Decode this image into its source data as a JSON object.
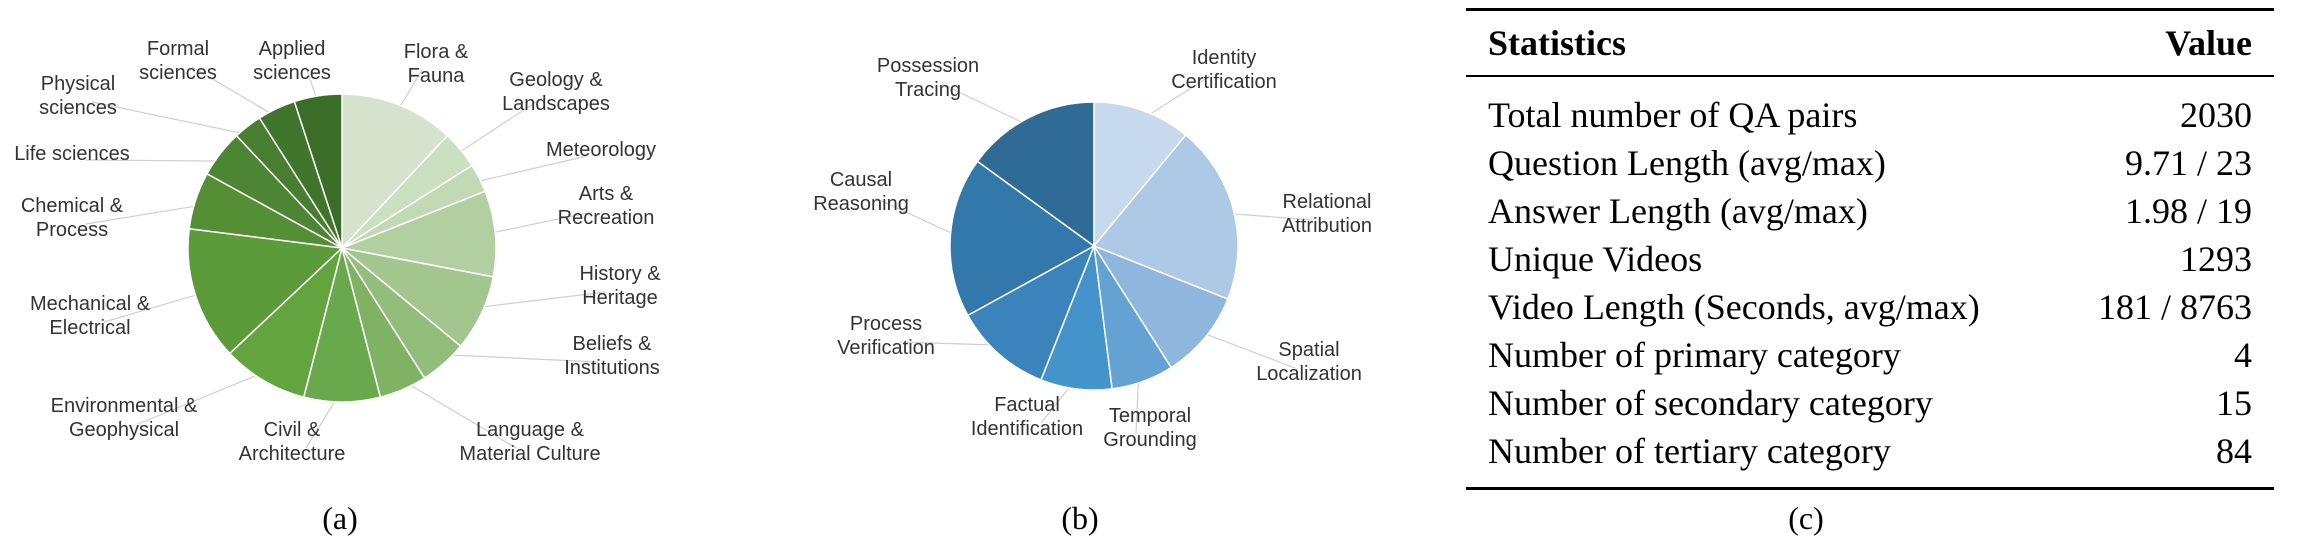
{
  "chart_data": [
    {
      "type": "pie",
      "panel": "a",
      "caption": "(a)",
      "slices": [
        {
          "label": "Flora & Fauna",
          "value": 12,
          "color": "#d5e3cd"
        },
        {
          "label": "Geology & Landscapes",
          "value": 4,
          "color": "#cbdfc1"
        },
        {
          "label": "Meteorology",
          "value": 3,
          "color": "#c2d9b5"
        },
        {
          "label": "Arts & Recreation",
          "value": 9,
          "color": "#b2cfa1"
        },
        {
          "label": "History & Heritage",
          "value": 8,
          "color": "#a3c68e"
        },
        {
          "label": "Beliefs & Institutions",
          "value": 5,
          "color": "#92bd7a"
        },
        {
          "label": "Language & Material Culture",
          "value": 5,
          "color": "#80b264"
        },
        {
          "label": "Civil & Architecture",
          "value": 8,
          "color": "#6aa84d"
        },
        {
          "label": "Environmental & Geophysical",
          "value": 9,
          "color": "#63a43f"
        },
        {
          "label": "Mechanical & Electrical",
          "value": 14,
          "color": "#5b9b3a"
        },
        {
          "label": "Chemical & Process",
          "value": 6,
          "color": "#548f36"
        },
        {
          "label": "Life sciences",
          "value": 5,
          "color": "#4d8632"
        },
        {
          "label": "Physical sciences",
          "value": 3,
          "color": "#477e2f"
        },
        {
          "label": "Formal sciences",
          "value": 4,
          "color": "#40752c"
        },
        {
          "label": "Applied sciences",
          "value": 5,
          "color": "#3a6d28"
        }
      ]
    },
    {
      "type": "pie",
      "panel": "b",
      "caption": "(b)",
      "slices": [
        {
          "label": "Identity Certification",
          "value": 11,
          "color": "#c7d9ec"
        },
        {
          "label": "Relational Attribution",
          "value": 20,
          "color": "#adc9e6"
        },
        {
          "label": "Spatial Localization",
          "value": 10,
          "color": "#8fb6dc"
        },
        {
          "label": "Temporal Grounding",
          "value": 7,
          "color": "#63a2d2"
        },
        {
          "label": "Factual Identification",
          "value": 8,
          "color": "#4493cb"
        },
        {
          "label": "Process Verification",
          "value": 11,
          "color": "#3b84bb"
        },
        {
          "label": "Causal Reasoning",
          "value": 18,
          "color": "#3378ab"
        },
        {
          "label": "Possession Tracing",
          "value": 15,
          "color": "#2f6b95"
        }
      ]
    }
  ],
  "table": {
    "caption": "(c)",
    "headers": [
      "Statistics",
      "Value"
    ],
    "rows": [
      [
        "Total number of QA pairs",
        "2030"
      ],
      [
        "Question Length (avg/max)",
        "9.71 / 23"
      ],
      [
        "Answer Length (avg/max)",
        "1.98 / 19"
      ],
      [
        "Unique Videos",
        "1293"
      ],
      [
        "Video Length (Seconds, avg/max)",
        "181 / 8763"
      ],
      [
        "Number of primary category",
        "4"
      ],
      [
        "Number of secondary category",
        "15"
      ],
      [
        "Number of tertiary category",
        "84"
      ]
    ]
  }
}
